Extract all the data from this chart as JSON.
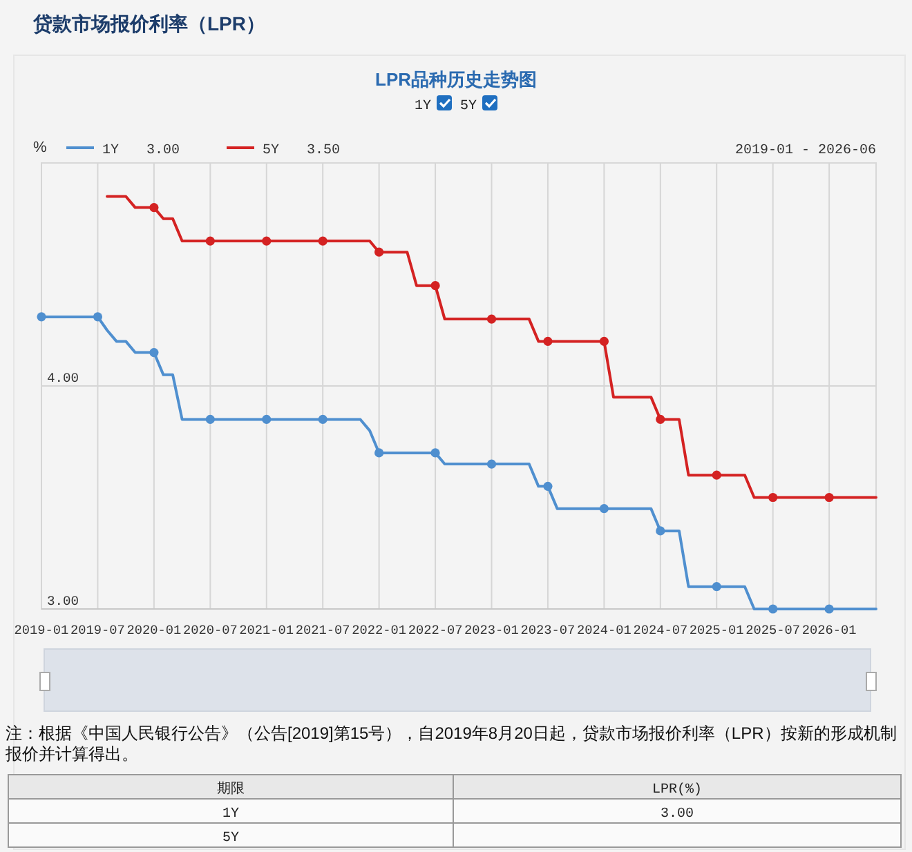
{
  "chart_data": {
    "type": "line",
    "title": "贷款市场报价利率（LPR）",
    "subtitle": "LPR品种历史走势图",
    "ylabel": "%",
    "annotations": [
      "3.00",
      "3.50",
      "2019-01 - 2026-06",
      "注：根据《中国人民银行公告》（公告[2019]第15号），自2019年8月20日起，贷款市场报价利率（LPR）按新的形成机制报价并计算得出。",
      "期限",
      "LPR(%)",
      "3.00"
    ],
    "series": [
      {
        "name": "1Y",
        "color": "#4f8fcf",
        "x": [
          "2019-01",
          "2019-07",
          "2019-08",
          "2019-09",
          "2019-10",
          "2019-11",
          "2020-01",
          "2020-02",
          "2020-03",
          "2020-04",
          "2020-07",
          "2021-01",
          "2021-07",
          "2021-11",
          "2021-12",
          "2022-01",
          "2022-07",
          "2022-08",
          "2023-01",
          "2023-05",
          "2023-06",
          "2023-07",
          "2023-08",
          "2024-01",
          "2024-06",
          "2024-07",
          "2024-09",
          "2024-10",
          "2025-01",
          "2025-04",
          "2025-05",
          "2025-07",
          "2026-01",
          "2026-06"
        ],
        "values": [
          4.31,
          4.31,
          4.25,
          4.2,
          4.2,
          4.15,
          4.15,
          4.05,
          4.05,
          3.85,
          3.85,
          3.85,
          3.85,
          3.85,
          3.8,
          3.7,
          3.7,
          3.65,
          3.65,
          3.65,
          3.55,
          3.55,
          3.45,
          3.45,
          3.45,
          3.35,
          3.35,
          3.1,
          3.1,
          3.1,
          3.0,
          3.0,
          3.0,
          3.0
        ]
      },
      {
        "name": "5Y",
        "color": "#d42222",
        "x": [
          "2019-08",
          "2019-09",
          "2019-10",
          "2019-11",
          "2020-01",
          "2020-02",
          "2020-03",
          "2020-04",
          "2020-07",
          "2021-01",
          "2021-07",
          "2021-12",
          "2022-01",
          "2022-04",
          "2022-05",
          "2022-07",
          "2022-08",
          "2023-01",
          "2023-05",
          "2023-06",
          "2023-07",
          "2024-01",
          "2024-02",
          "2024-06",
          "2024-07",
          "2024-09",
          "2024-10",
          "2025-01",
          "2025-04",
          "2025-05",
          "2025-07",
          "2026-01",
          "2026-06"
        ],
        "values": [
          4.85,
          4.85,
          4.85,
          4.8,
          4.8,
          4.75,
          4.75,
          4.65,
          4.65,
          4.65,
          4.65,
          4.65,
          4.6,
          4.6,
          4.45,
          4.45,
          4.3,
          4.3,
          4.3,
          4.2,
          4.2,
          4.2,
          3.95,
          3.95,
          3.85,
          3.85,
          3.6,
          3.6,
          3.6,
          3.5,
          3.5,
          3.5,
          3.5
        ]
      },
      {
        "type": "scatter",
        "color": "#4f8fcf",
        "marker": "circle",
        "x": [
          "2019-01",
          "2019-07",
          "2020-01",
          "2020-07",
          "2021-01",
          "2021-07",
          "2022-01",
          "2022-07",
          "2023-01",
          "2023-07",
          "2024-01",
          "2024-07",
          "2025-01",
          "2025-07",
          "2026-01"
        ],
        "values": [
          4.31,
          4.31,
          4.15,
          3.85,
          3.85,
          3.85,
          3.7,
          3.7,
          3.65,
          3.55,
          3.45,
          3.35,
          3.1,
          3.0,
          3.0
        ]
      },
      {
        "type": "scatter",
        "color": "#d42222",
        "marker": "circle",
        "x": [
          "2020-01",
          "2020-07",
          "2021-01",
          "2021-07",
          "2022-01",
          "2022-07",
          "2023-01",
          "2023-07",
          "2024-01",
          "2024-07",
          "2025-01",
          "2025-07",
          "2026-01"
        ],
        "values": [
          4.8,
          4.65,
          4.65,
          4.65,
          4.6,
          4.45,
          4.3,
          4.2,
          4.2,
          3.85,
          3.6,
          3.5,
          3.5
        ]
      }
    ],
    "xlim": [
      "2019-01",
      "2026-06"
    ],
    "xticks": [
      "2019-01",
      "2019-07",
      "2020-01",
      "2020-07",
      "2021-01",
      "2021-07",
      "2022-01",
      "2022-07",
      "2023-01",
      "2023-07",
      "2024-01",
      "2024-07",
      "2025-01",
      "2025-07",
      "2026-01"
    ],
    "ylim": [
      3,
      5
    ],
    "yticks": [
      {
        "value": 3,
        "label": "3.00"
      },
      {
        "value": 4,
        "label": "4.00"
      }
    ],
    "grid": true,
    "legend": "top left"
  }
}
